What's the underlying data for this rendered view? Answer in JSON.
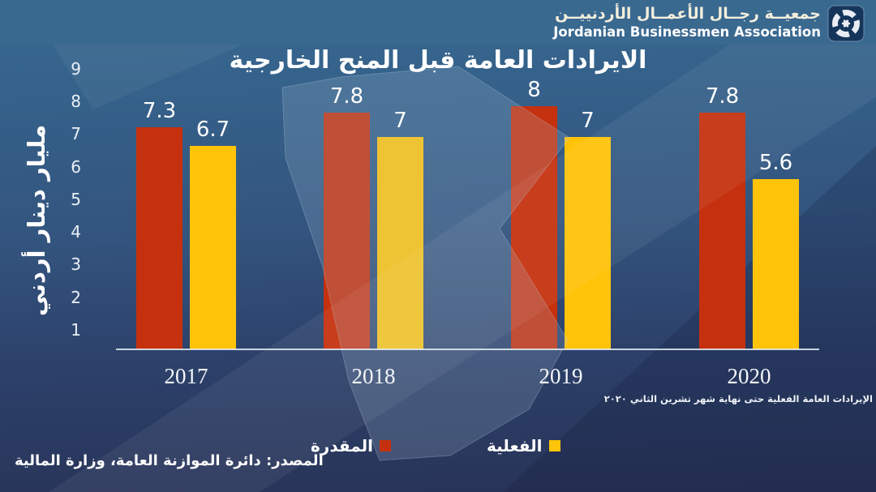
{
  "header": {
    "org_name_ar": "جمعيــة رجــال الأعمــال الأردنييــن",
    "org_name_en": "Jordanian Businessmen Association",
    "logo_icon": "jba-pinwheel-logo"
  },
  "chart_data": {
    "type": "bar",
    "title": "الايرادات العامة قبل المنح الخارجية",
    "xlabel": "",
    "ylabel": "مليار دينار أردني",
    "categories": [
      "2017",
      "2018",
      "2019",
      "2020"
    ],
    "series": [
      {
        "name": "المقدرة",
        "color": "#C5310E",
        "values": [
          7.3,
          7.8,
          8,
          7.8
        ],
        "labels": [
          "7.3",
          "7.8",
          "8",
          "7.8"
        ]
      },
      {
        "name": "الفعلية",
        "color": "#FFC30A",
        "values": [
          6.7,
          7,
          7,
          5.6
        ],
        "labels": [
          "6.7",
          "7",
          "7",
          "5.6"
        ]
      }
    ],
    "yticks": [
      1,
      2,
      3,
      4,
      5,
      6,
      7,
      8,
      9
    ],
    "ylim": [
      0,
      9
    ],
    "grid": false,
    "legend_position": "bottom"
  },
  "annotations": {
    "footnote": "الإيرادات العامة الفعلية حتى نهاية شهر تشرين الثاني ٢٠٢٠",
    "source": "المصدر: دائرة الموازنة العامة، وزارة المالية"
  },
  "colors": {
    "header_band": "#3A6990",
    "background_top": "#36678F",
    "background_bottom": "#283357",
    "estimated_bar": "#C5310E",
    "actual_bar": "#FFC30A"
  }
}
